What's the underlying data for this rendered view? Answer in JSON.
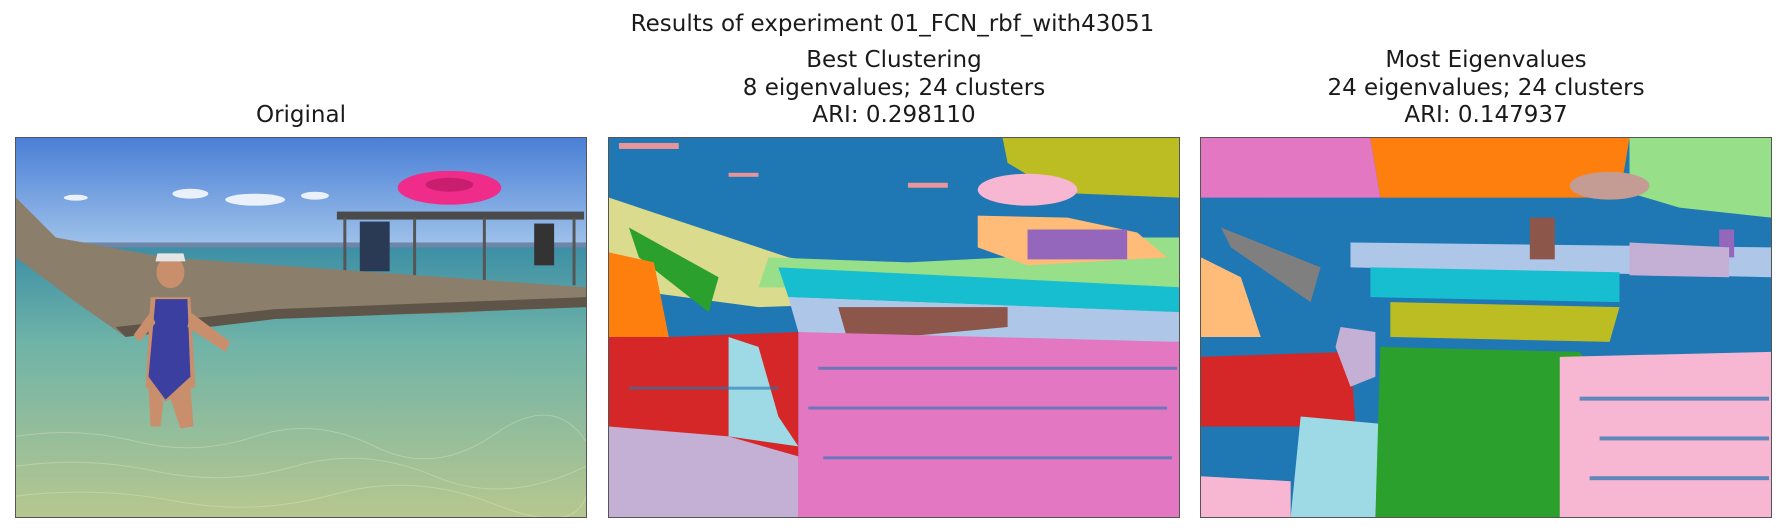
{
  "figure": {
    "suptitle": "Results of experiment 01_FCN_rbf_with43051"
  },
  "panels": [
    {
      "id": "original",
      "title_lines": [
        "Original"
      ]
    },
    {
      "id": "best",
      "title_lines": [
        "Best Clustering",
        "8 eigenvalues; 24 clusters",
        "ARI: 0.298110"
      ]
    },
    {
      "id": "most",
      "title_lines": [
        "Most Eigenvalues",
        "24 eigenvalues; 24 clusters",
        "ARI: 0.147937"
      ]
    }
  ],
  "colors": {
    "tab_blue": "#1f77b4",
    "tab_orange": "#ff7f0e",
    "tab_green": "#2ca02c",
    "tab_red": "#d62728",
    "tab_purple": "#9467bd",
    "tab_brown": "#8c564b",
    "tab_pink": "#e377c2",
    "tab_gray": "#7f7f7f",
    "tab_olive": "#bcbd22",
    "tab_cyan": "#17becf",
    "light_blue": "#aec7e8",
    "light_orange": "#ffbb78",
    "light_green": "#98df8a",
    "light_red": "#ff9896",
    "light_purple": "#c5b0d5",
    "light_brown": "#c49c94",
    "light_pink": "#f7b6d2",
    "light_olive": "#dbdb8d",
    "light_cyan": "#9edae5"
  }
}
